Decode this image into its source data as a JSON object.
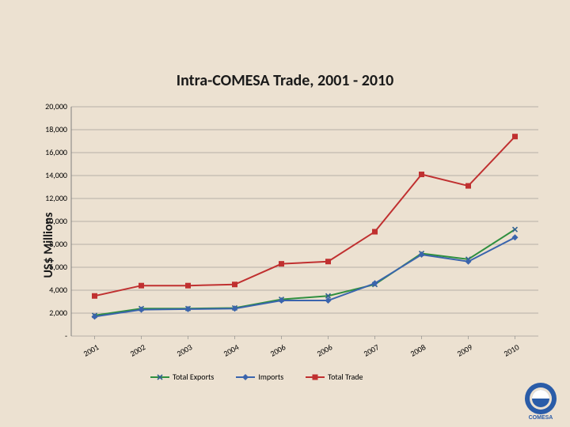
{
  "chart": {
    "type": "line",
    "title": "Intra-COMESA Trade, 2001 - 2010",
    "title_fontsize": 20,
    "ylabel": "US$ Millions",
    "ylabel_fontsize": 16,
    "background_color": "#ece1d1",
    "plot_background": "transparent",
    "grid_color": "#808080",
    "grid_width": 0.6,
    "axis_color": "#808080",
    "ylim": [
      0,
      20000
    ],
    "ytick_step": 2000,
    "yticks": [
      "-",
      "2,000",
      "4,000",
      "6,000",
      "8,000",
      "10,000",
      "12,000",
      "14,000",
      "16,000",
      "18,000",
      "20,000"
    ],
    "xlabels": [
      "2001",
      "2002",
      "2003",
      "2004",
      "2006",
      "2006",
      "2007",
      "2008",
      "2009",
      "2010"
    ],
    "xlabel_rotation": -30,
    "tick_fontsize": 10,
    "series": [
      {
        "name": "Total Exports",
        "color": "#2f8f3f",
        "marker": "x",
        "marker_color": "#306090",
        "line_width": 2,
        "values": [
          1800,
          2400,
          2400,
          2450,
          3200,
          3500,
          4500,
          7200,
          6700,
          9300
        ]
      },
      {
        "name": "Imports",
        "color": "#3a64ad",
        "marker": "diamond",
        "marker_color": "#3a64ad",
        "line_width": 2,
        "values": [
          1700,
          2300,
          2350,
          2400,
          3100,
          3100,
          4600,
          7100,
          6500,
          8600
        ]
      },
      {
        "name": "Total Trade",
        "color": "#c03030",
        "marker": "square",
        "marker_color": "#c03030",
        "line_width": 2,
        "values": [
          3500,
          4400,
          4400,
          4500,
          6300,
          6500,
          9100,
          14100,
          13100,
          17400
        ]
      }
    ],
    "legend": {
      "position": "bottom",
      "fontsize": 10,
      "items": [
        "Total Exports",
        "Imports",
        "Total Trade"
      ]
    }
  },
  "logo": {
    "name": "COMESA",
    "outer_color": "#2a5ca8",
    "inner_color": "#ffffff",
    "text_color": "#2a5ca8"
  }
}
